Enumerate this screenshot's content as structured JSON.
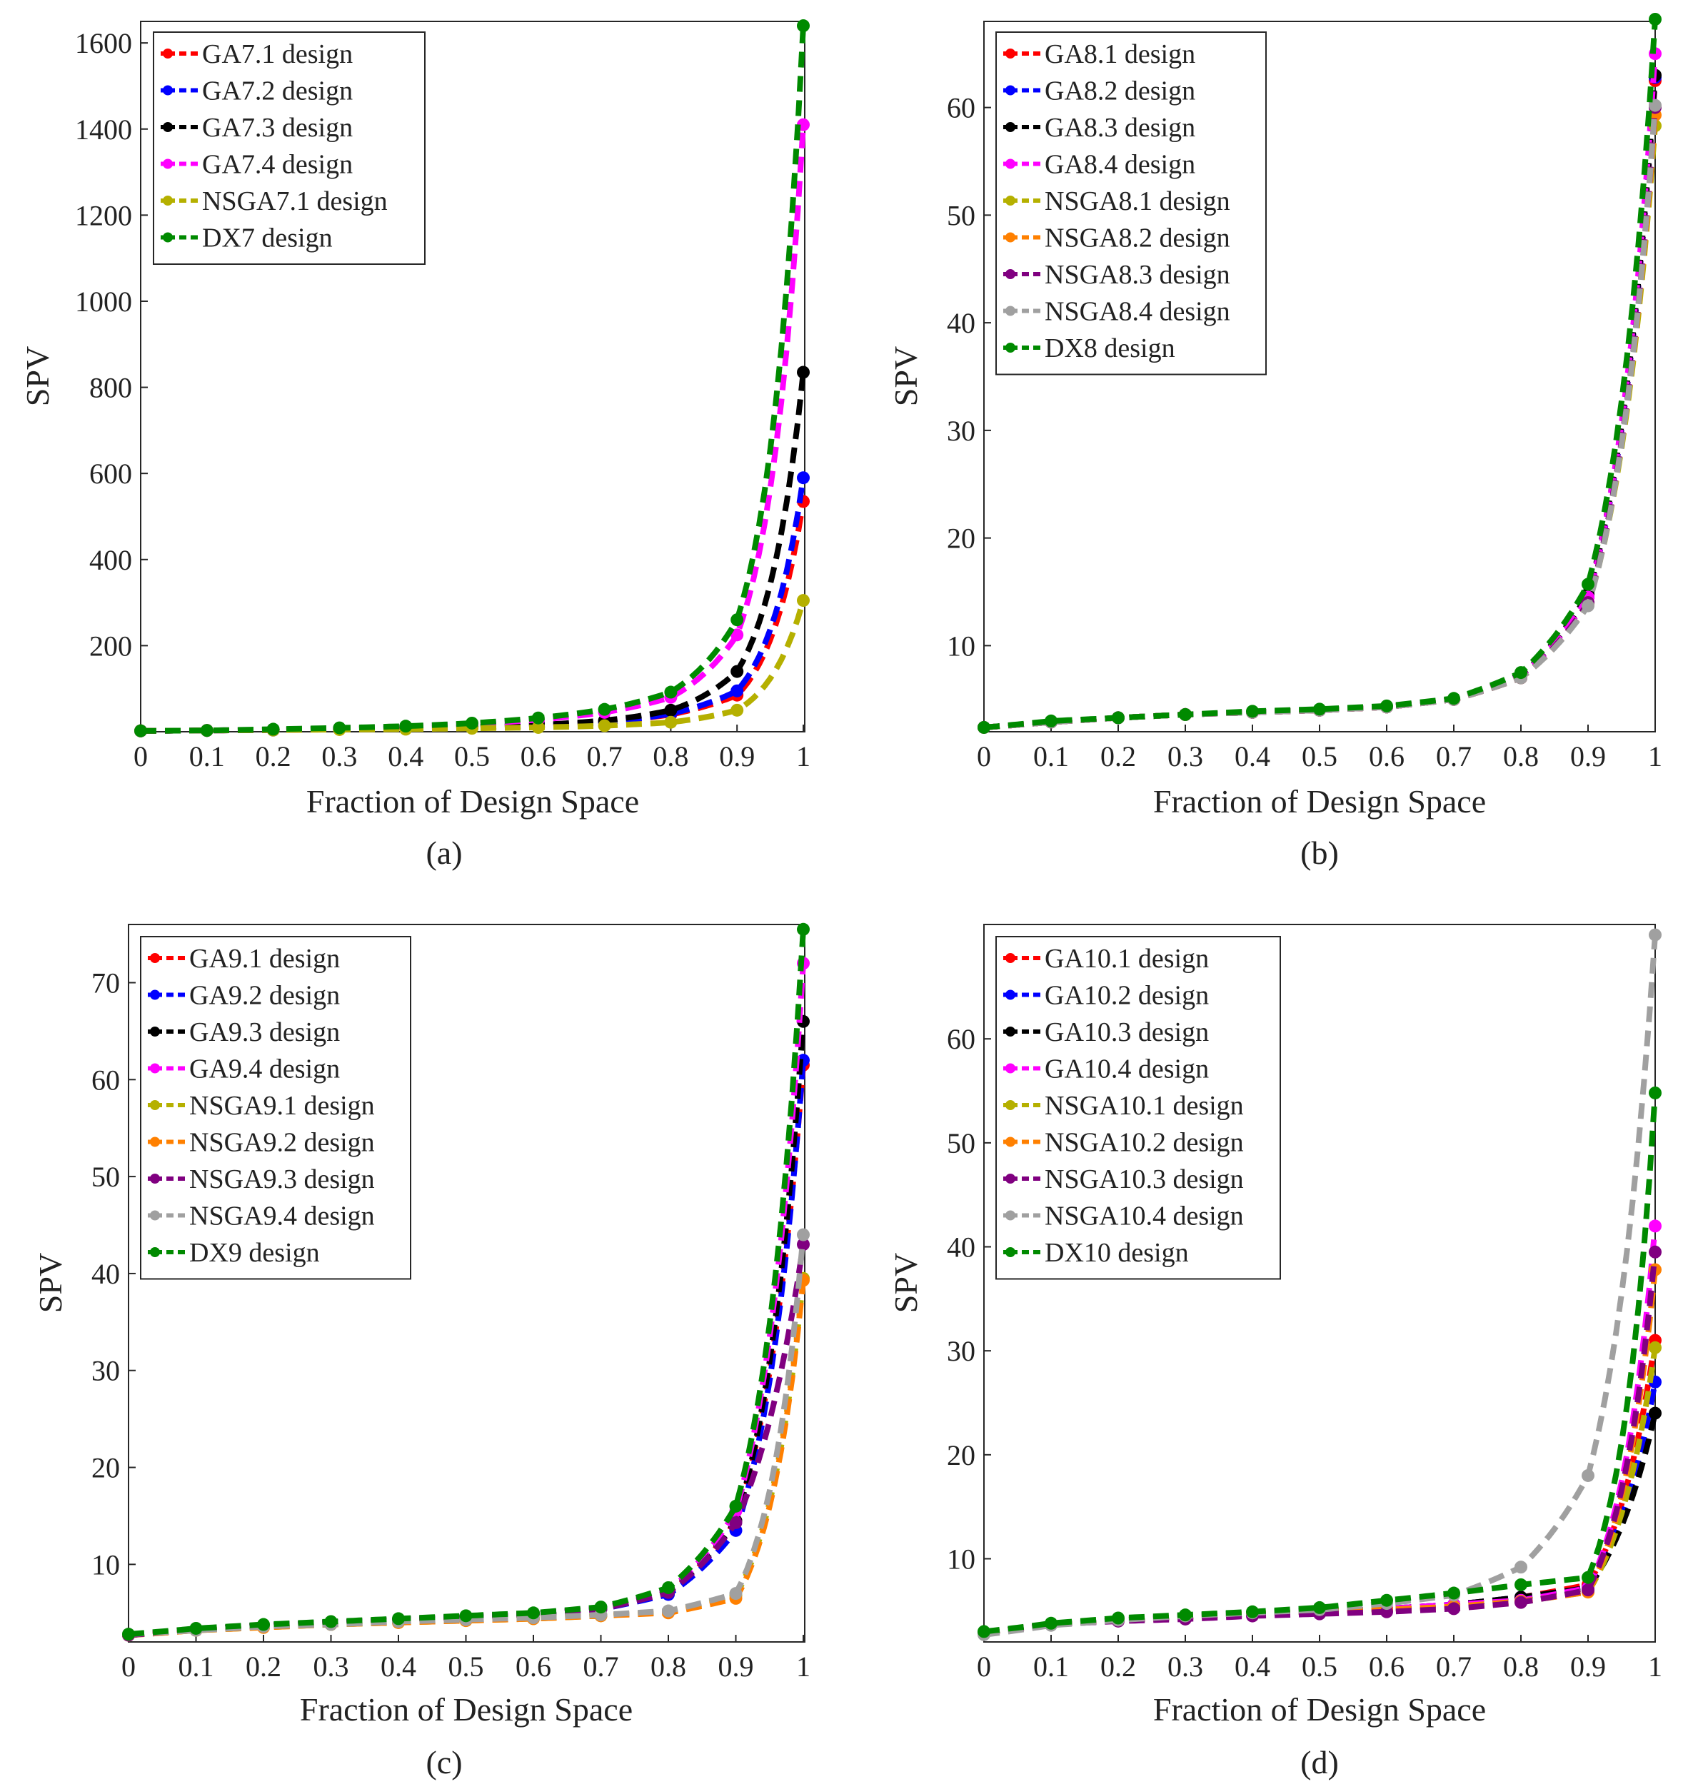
{
  "figure": {
    "background": "#ffffff"
  },
  "chart_data": [
    {
      "panel": "(a)",
      "type": "line",
      "xlabel": "Fraction of Design Space",
      "ylabel": "SPV",
      "xlim": [
        0,
        1
      ],
      "ylim": [
        0,
        1650
      ],
      "xticks": [
        0,
        0.1,
        0.2,
        0.3,
        0.4,
        0.5,
        0.6,
        0.7,
        0.8,
        0.9,
        1
      ],
      "xtick_labels": [
        "0",
        "0.1",
        "0.2",
        "0.3",
        "0.4",
        "0.5",
        "0.6",
        "0.7",
        "0.8",
        "0.9",
        "1"
      ],
      "yticks": [
        200,
        400,
        600,
        800,
        1000,
        1200,
        1400,
        1600
      ],
      "ytick_labels": [
        "200",
        "400",
        "600",
        "800",
        "1000",
        "1200",
        "1400",
        "1600"
      ],
      "legend_position": "top-left",
      "x": [
        0,
        0.1,
        0.2,
        0.3,
        0.4,
        0.5,
        0.6,
        0.7,
        0.8,
        0.9,
        1
      ],
      "series": [
        {
          "name": "GA7.1 design",
          "color": "#ff0000",
          "values": [
            2,
            3,
            4,
            6,
            8,
            10,
            14,
            22,
            40,
            85,
            535
          ]
        },
        {
          "name": "GA7.2 design",
          "color": "#0000ff",
          "values": [
            2,
            3,
            4,
            6,
            8,
            10,
            14,
            22,
            42,
            95,
            590
          ]
        },
        {
          "name": "GA7.3 design",
          "color": "#000000",
          "values": [
            2,
            3,
            4,
            6,
            8,
            11,
            16,
            26,
            50,
            140,
            835
          ]
        },
        {
          "name": "GA7.4 design",
          "color": "#ff00ff",
          "values": [
            2,
            3,
            5,
            8,
            12,
            18,
            28,
            45,
            80,
            225,
            1410
          ]
        },
        {
          "name": "NSGA7.1 design",
          "color": "#b5b000",
          "values": [
            2,
            3,
            4,
            5,
            6,
            8,
            10,
            14,
            22,
            50,
            305
          ]
        },
        {
          "name": "DX7 design",
          "color": "#008a00",
          "values": [
            2,
            3,
            6,
            9,
            13,
            20,
            32,
            52,
            92,
            260,
            1640
          ]
        }
      ]
    },
    {
      "panel": "(b)",
      "type": "line",
      "xlabel": "Fraction of Design Space",
      "ylabel": "SPV",
      "xlim": [
        0,
        1
      ],
      "ylim": [
        2,
        68
      ],
      "xticks": [
        0,
        0.1,
        0.2,
        0.3,
        0.4,
        0.5,
        0.6,
        0.7,
        0.8,
        0.9,
        1
      ],
      "xtick_labels": [
        "0",
        "0.1",
        "0.2",
        "0.3",
        "0.4",
        "0.5",
        "0.6",
        "0.7",
        "0.8",
        "0.9",
        "1"
      ],
      "yticks": [
        10,
        20,
        30,
        40,
        50,
        60
      ],
      "ytick_labels": [
        "10",
        "20",
        "30",
        "40",
        "50",
        "60"
      ],
      "legend_position": "top-left",
      "x": [
        0,
        0.1,
        0.2,
        0.3,
        0.4,
        0.5,
        0.6,
        0.7,
        0.8,
        0.9,
        1
      ],
      "series": [
        {
          "name": "GA8.1 design",
          "color": "#ff0000",
          "values": [
            2.4,
            2.9,
            3.3,
            3.6,
            3.8,
            4.0,
            4.3,
            5.0,
            7.2,
            14.5,
            62.5
          ]
        },
        {
          "name": "GA8.2 design",
          "color": "#0000ff",
          "values": [
            2.4,
            2.9,
            3.3,
            3.6,
            3.8,
            4.0,
            4.3,
            5.0,
            7.2,
            14.5,
            62.8
          ]
        },
        {
          "name": "GA8.3 design",
          "color": "#000000",
          "values": [
            2.4,
            2.9,
            3.3,
            3.6,
            3.8,
            4.0,
            4.3,
            5.0,
            7.3,
            14.8,
            63.0
          ]
        },
        {
          "name": "GA8.4 design",
          "color": "#ff00ff",
          "values": [
            2.4,
            2.9,
            3.3,
            3.6,
            3.8,
            4.0,
            4.3,
            5.0,
            7.2,
            14.5,
            65.0
          ]
        },
        {
          "name": "NSGA8.1 design",
          "color": "#b5b000",
          "values": [
            2.4,
            2.9,
            3.3,
            3.6,
            3.8,
            4.0,
            4.3,
            5.0,
            7.0,
            13.8,
            58.3
          ]
        },
        {
          "name": "NSGA8.2 design",
          "color": "#ff8000",
          "values": [
            2.4,
            2.9,
            3.3,
            3.6,
            3.8,
            4.0,
            4.3,
            5.0,
            7.0,
            14.0,
            59.3
          ]
        },
        {
          "name": "NSGA8.3 design",
          "color": "#800080",
          "values": [
            2.4,
            2.9,
            3.3,
            3.6,
            3.8,
            4.0,
            4.3,
            5.0,
            7.0,
            14.0,
            60.0
          ]
        },
        {
          "name": "NSGA8.4 design",
          "color": "#a0a0a0",
          "values": [
            2.4,
            2.9,
            3.3,
            3.6,
            3.8,
            4.0,
            4.3,
            5.0,
            7.0,
            13.7,
            60.2
          ]
        },
        {
          "name": "DX8 design",
          "color": "#008a00",
          "values": [
            2.4,
            3.0,
            3.3,
            3.6,
            3.9,
            4.1,
            4.4,
            5.1,
            7.5,
            15.7,
            68.2
          ]
        }
      ]
    },
    {
      "panel": "(c)",
      "type": "line",
      "xlabel": "Fraction of Design Space",
      "ylabel": "SPV",
      "xlim": [
        0,
        1
      ],
      "ylim": [
        2,
        76
      ],
      "xticks": [
        0,
        0.1,
        0.2,
        0.3,
        0.4,
        0.5,
        0.6,
        0.7,
        0.8,
        0.9,
        1
      ],
      "xtick_labels": [
        "0",
        "0.1",
        "0.2",
        "0.3",
        "0.4",
        "0.5",
        "0.6",
        "0.7",
        "0.8",
        "0.9",
        "1"
      ],
      "yticks": [
        10,
        20,
        30,
        40,
        50,
        60,
        70
      ],
      "ytick_labels": [
        "10",
        "20",
        "30",
        "40",
        "50",
        "60",
        "70"
      ],
      "legend_position": "top-left",
      "x": [
        0,
        0.1,
        0.2,
        0.3,
        0.4,
        0.5,
        0.6,
        0.7,
        0.8,
        0.9,
        1
      ],
      "series": [
        {
          "name": "GA9.1 design",
          "color": "#ff0000",
          "values": [
            2.7,
            3.3,
            3.7,
            4.0,
            4.3,
            4.6,
            4.9,
            5.4,
            7.0,
            14.5,
            61.5
          ]
        },
        {
          "name": "GA9.2 design",
          "color": "#0000ff",
          "values": [
            2.7,
            3.3,
            3.7,
            4.0,
            4.3,
            4.6,
            4.9,
            5.4,
            6.9,
            13.5,
            62.0
          ]
        },
        {
          "name": "GA9.3 design",
          "color": "#000000",
          "values": [
            2.7,
            3.3,
            3.7,
            4.0,
            4.3,
            4.6,
            4.9,
            5.5,
            7.2,
            14.5,
            66.0
          ]
        },
        {
          "name": "GA9.4 design",
          "color": "#ff00ff",
          "values": [
            2.7,
            3.3,
            3.7,
            4.0,
            4.3,
            4.6,
            4.9,
            5.5,
            7.3,
            15.5,
            72.0
          ]
        },
        {
          "name": "NSGA9.1 design",
          "color": "#b5b000",
          "values": [
            2.7,
            3.2,
            3.5,
            3.8,
            4.0,
            4.2,
            4.4,
            4.7,
            5.1,
            6.8,
            39.5
          ]
        },
        {
          "name": "NSGA9.2 design",
          "color": "#ff8000",
          "values": [
            2.7,
            3.2,
            3.5,
            3.8,
            4.0,
            4.2,
            4.4,
            4.7,
            5.0,
            6.5,
            39.3
          ]
        },
        {
          "name": "NSGA9.3 design",
          "color": "#800080",
          "values": [
            2.7,
            3.3,
            3.7,
            4.0,
            4.3,
            4.6,
            4.9,
            5.4,
            7.1,
            14.3,
            43.0
          ]
        },
        {
          "name": "NSGA9.4 design",
          "color": "#a0a0a0",
          "values": [
            2.8,
            3.2,
            3.6,
            3.8,
            4.1,
            4.3,
            4.5,
            4.8,
            5.2,
            7.0,
            44.0
          ]
        },
        {
          "name": "DX9 design",
          "color": "#008a00",
          "values": [
            2.8,
            3.4,
            3.8,
            4.1,
            4.4,
            4.7,
            5.0,
            5.6,
            7.6,
            16.0,
            75.5
          ]
        }
      ]
    },
    {
      "panel": "(d)",
      "type": "line",
      "xlabel": "Fraction of Design Space",
      "ylabel": "SPV",
      "xlim": [
        0,
        1
      ],
      "ylim": [
        2,
        71
      ],
      "xticks": [
        0,
        0.1,
        0.2,
        0.3,
        0.4,
        0.5,
        0.6,
        0.7,
        0.8,
        0.9,
        1
      ],
      "xtick_labels": [
        "0",
        "0.1",
        "0.2",
        "0.3",
        "0.4",
        "0.5",
        "0.6",
        "0.7",
        "0.8",
        "0.9",
        "1"
      ],
      "yticks": [
        10,
        20,
        30,
        40,
        50,
        60
      ],
      "ytick_labels": [
        "10",
        "20",
        "30",
        "40",
        "50",
        "60"
      ],
      "legend_position": "top-left",
      "x": [
        0,
        0.1,
        0.2,
        0.3,
        0.4,
        0.5,
        0.6,
        0.7,
        0.8,
        0.9,
        1
      ],
      "series": [
        {
          "name": "GA10.1 design",
          "color": "#ff0000",
          "values": [
            2.9,
            3.7,
            4.1,
            4.4,
            4.7,
            4.9,
            5.2,
            5.6,
            6.3,
            7.5,
            31.0
          ]
        },
        {
          "name": "GA10.2 design",
          "color": "#0000ff",
          "values": [
            2.9,
            3.7,
            4.1,
            4.4,
            4.7,
            4.9,
            5.2,
            5.6,
            6.3,
            7.2,
            27.0
          ]
        },
        {
          "name": "GA10.3 design",
          "color": "#000000",
          "values": [
            2.9,
            3.7,
            4.1,
            4.4,
            4.7,
            4.9,
            5.2,
            5.6,
            6.3,
            7.2,
            24.0
          ]
        },
        {
          "name": "GA10.4 design",
          "color": "#ff00ff",
          "values": [
            2.9,
            3.7,
            4.1,
            4.4,
            4.7,
            4.9,
            5.2,
            5.6,
            6.0,
            7.2,
            42.0
          ]
        },
        {
          "name": "NSGA10.1 design",
          "color": "#b5b000",
          "values": [
            2.9,
            3.7,
            4.1,
            4.4,
            4.7,
            4.9,
            5.1,
            5.4,
            5.9,
            6.8,
            30.3
          ]
        },
        {
          "name": "NSGA10.2 design",
          "color": "#ff8000",
          "values": [
            2.9,
            3.7,
            4.1,
            4.4,
            4.7,
            4.9,
            5.1,
            5.4,
            5.9,
            6.8,
            37.8
          ]
        },
        {
          "name": "NSGA10.3 design",
          "color": "#800080",
          "values": [
            2.9,
            3.7,
            4.0,
            4.2,
            4.5,
            4.7,
            4.9,
            5.2,
            5.8,
            7.0,
            39.5
          ]
        },
        {
          "name": "NSGA10.4 design",
          "color": "#a0a0a0",
          "values": [
            2.7,
            3.6,
            4.1,
            4.5,
            4.8,
            5.1,
            5.7,
            6.5,
            9.2,
            18.0,
            70.0
          ]
        },
        {
          "name": "DX10 design",
          "color": "#008a00",
          "values": [
            3.0,
            3.8,
            4.3,
            4.6,
            4.9,
            5.3,
            6.0,
            6.7,
            7.5,
            8.2,
            54.8
          ]
        }
      ]
    }
  ]
}
